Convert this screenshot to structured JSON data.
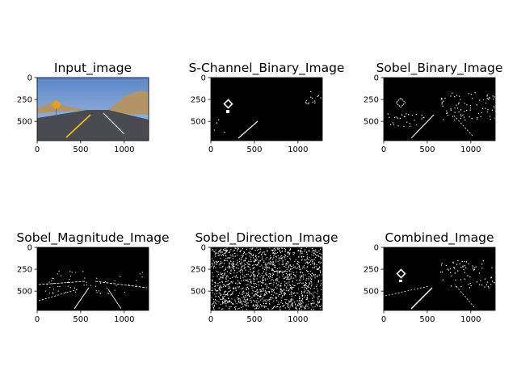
{
  "figure": {
    "background": "#ffffff",
    "panels": [
      {
        "title": "Input_image",
        "kind": "photo"
      },
      {
        "title": "S-Channel_Binary_Image",
        "kind": "schannel"
      },
      {
        "title": "Sobel_Binary_Image",
        "kind": "sobel"
      },
      {
        "title": "Sobel_Magnitude_Image",
        "kind": "magnitude"
      },
      {
        "title": "Sobel_Direction_Image",
        "kind": "direction"
      },
      {
        "title": "Combined_Image",
        "kind": "combined"
      }
    ],
    "x_ticks": [
      "0",
      "500",
      "1000"
    ],
    "y_ticks": [
      "0",
      "250",
      "500"
    ],
    "x_tick_values": [
      0,
      500,
      1000
    ],
    "y_tick_values": [
      0,
      250,
      500
    ],
    "image_width": 1280,
    "image_height": 720,
    "colors": {
      "sky": "#5b86c6",
      "sky_light": "#a9c4e6",
      "road": "#4a4a52",
      "hill": "#b39466",
      "lane_yellow": "#e2c21a",
      "lane_white": "#f2f2f2",
      "sign": "#e0a020",
      "binary_bg": "#000000",
      "binary_fg": "#ffffff"
    }
  }
}
